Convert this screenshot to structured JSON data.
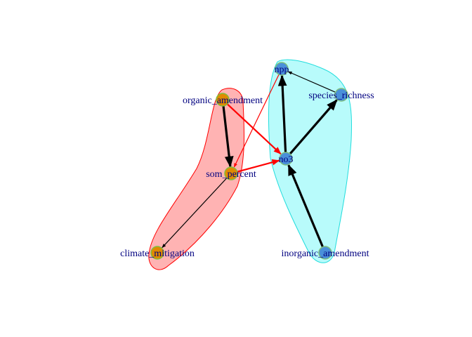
{
  "colors": {
    "group_red_fill": "#ffb3b3",
    "group_red_stroke": "#ff0000",
    "group_cyan_fill": "#b8fbfb",
    "group_cyan_stroke": "#22dddd",
    "node_orange": "#e08a00",
    "node_blue": "#4a90d9",
    "node_border_green": "#7fbf3f",
    "label_color": "#000080",
    "edge_black": "#000000",
    "edge_red": "#ff0000"
  },
  "nodes": [
    {
      "id": "npp",
      "label": "npp",
      "group": "cyan"
    },
    {
      "id": "species_richness",
      "label": "species_richness",
      "group": "cyan"
    },
    {
      "id": "organic_amendment",
      "label": "organic_amendment",
      "group": "red"
    },
    {
      "id": "no3",
      "label": "no3",
      "group": "cyan"
    },
    {
      "id": "som_percent",
      "label": "som_percent",
      "group": "red"
    },
    {
      "id": "climate_mitigation",
      "label": "climate_mitigation",
      "group": "red"
    },
    {
      "id": "inorganic_amendment",
      "label": "inorganic_amendment",
      "group": "cyan"
    }
  ],
  "edges": [
    {
      "from": "organic_amendment",
      "to": "som_percent",
      "color": "black",
      "weight": "thick"
    },
    {
      "from": "organic_amendment",
      "to": "no3",
      "color": "red",
      "weight": "medium"
    },
    {
      "from": "npp",
      "to": "som_percent",
      "color": "red",
      "weight": "thin"
    },
    {
      "from": "som_percent",
      "to": "no3",
      "color": "red",
      "weight": "medium"
    },
    {
      "from": "som_percent",
      "to": "climate_mitigation",
      "color": "black",
      "weight": "thin"
    },
    {
      "from": "no3",
      "to": "npp",
      "color": "black",
      "weight": "thick"
    },
    {
      "from": "no3",
      "to": "species_richness",
      "color": "black",
      "weight": "thick"
    },
    {
      "from": "species_richness",
      "to": "npp",
      "color": "black",
      "weight": "thin"
    },
    {
      "from": "inorganic_amendment",
      "to": "no3",
      "color": "black",
      "weight": "thick"
    }
  ]
}
